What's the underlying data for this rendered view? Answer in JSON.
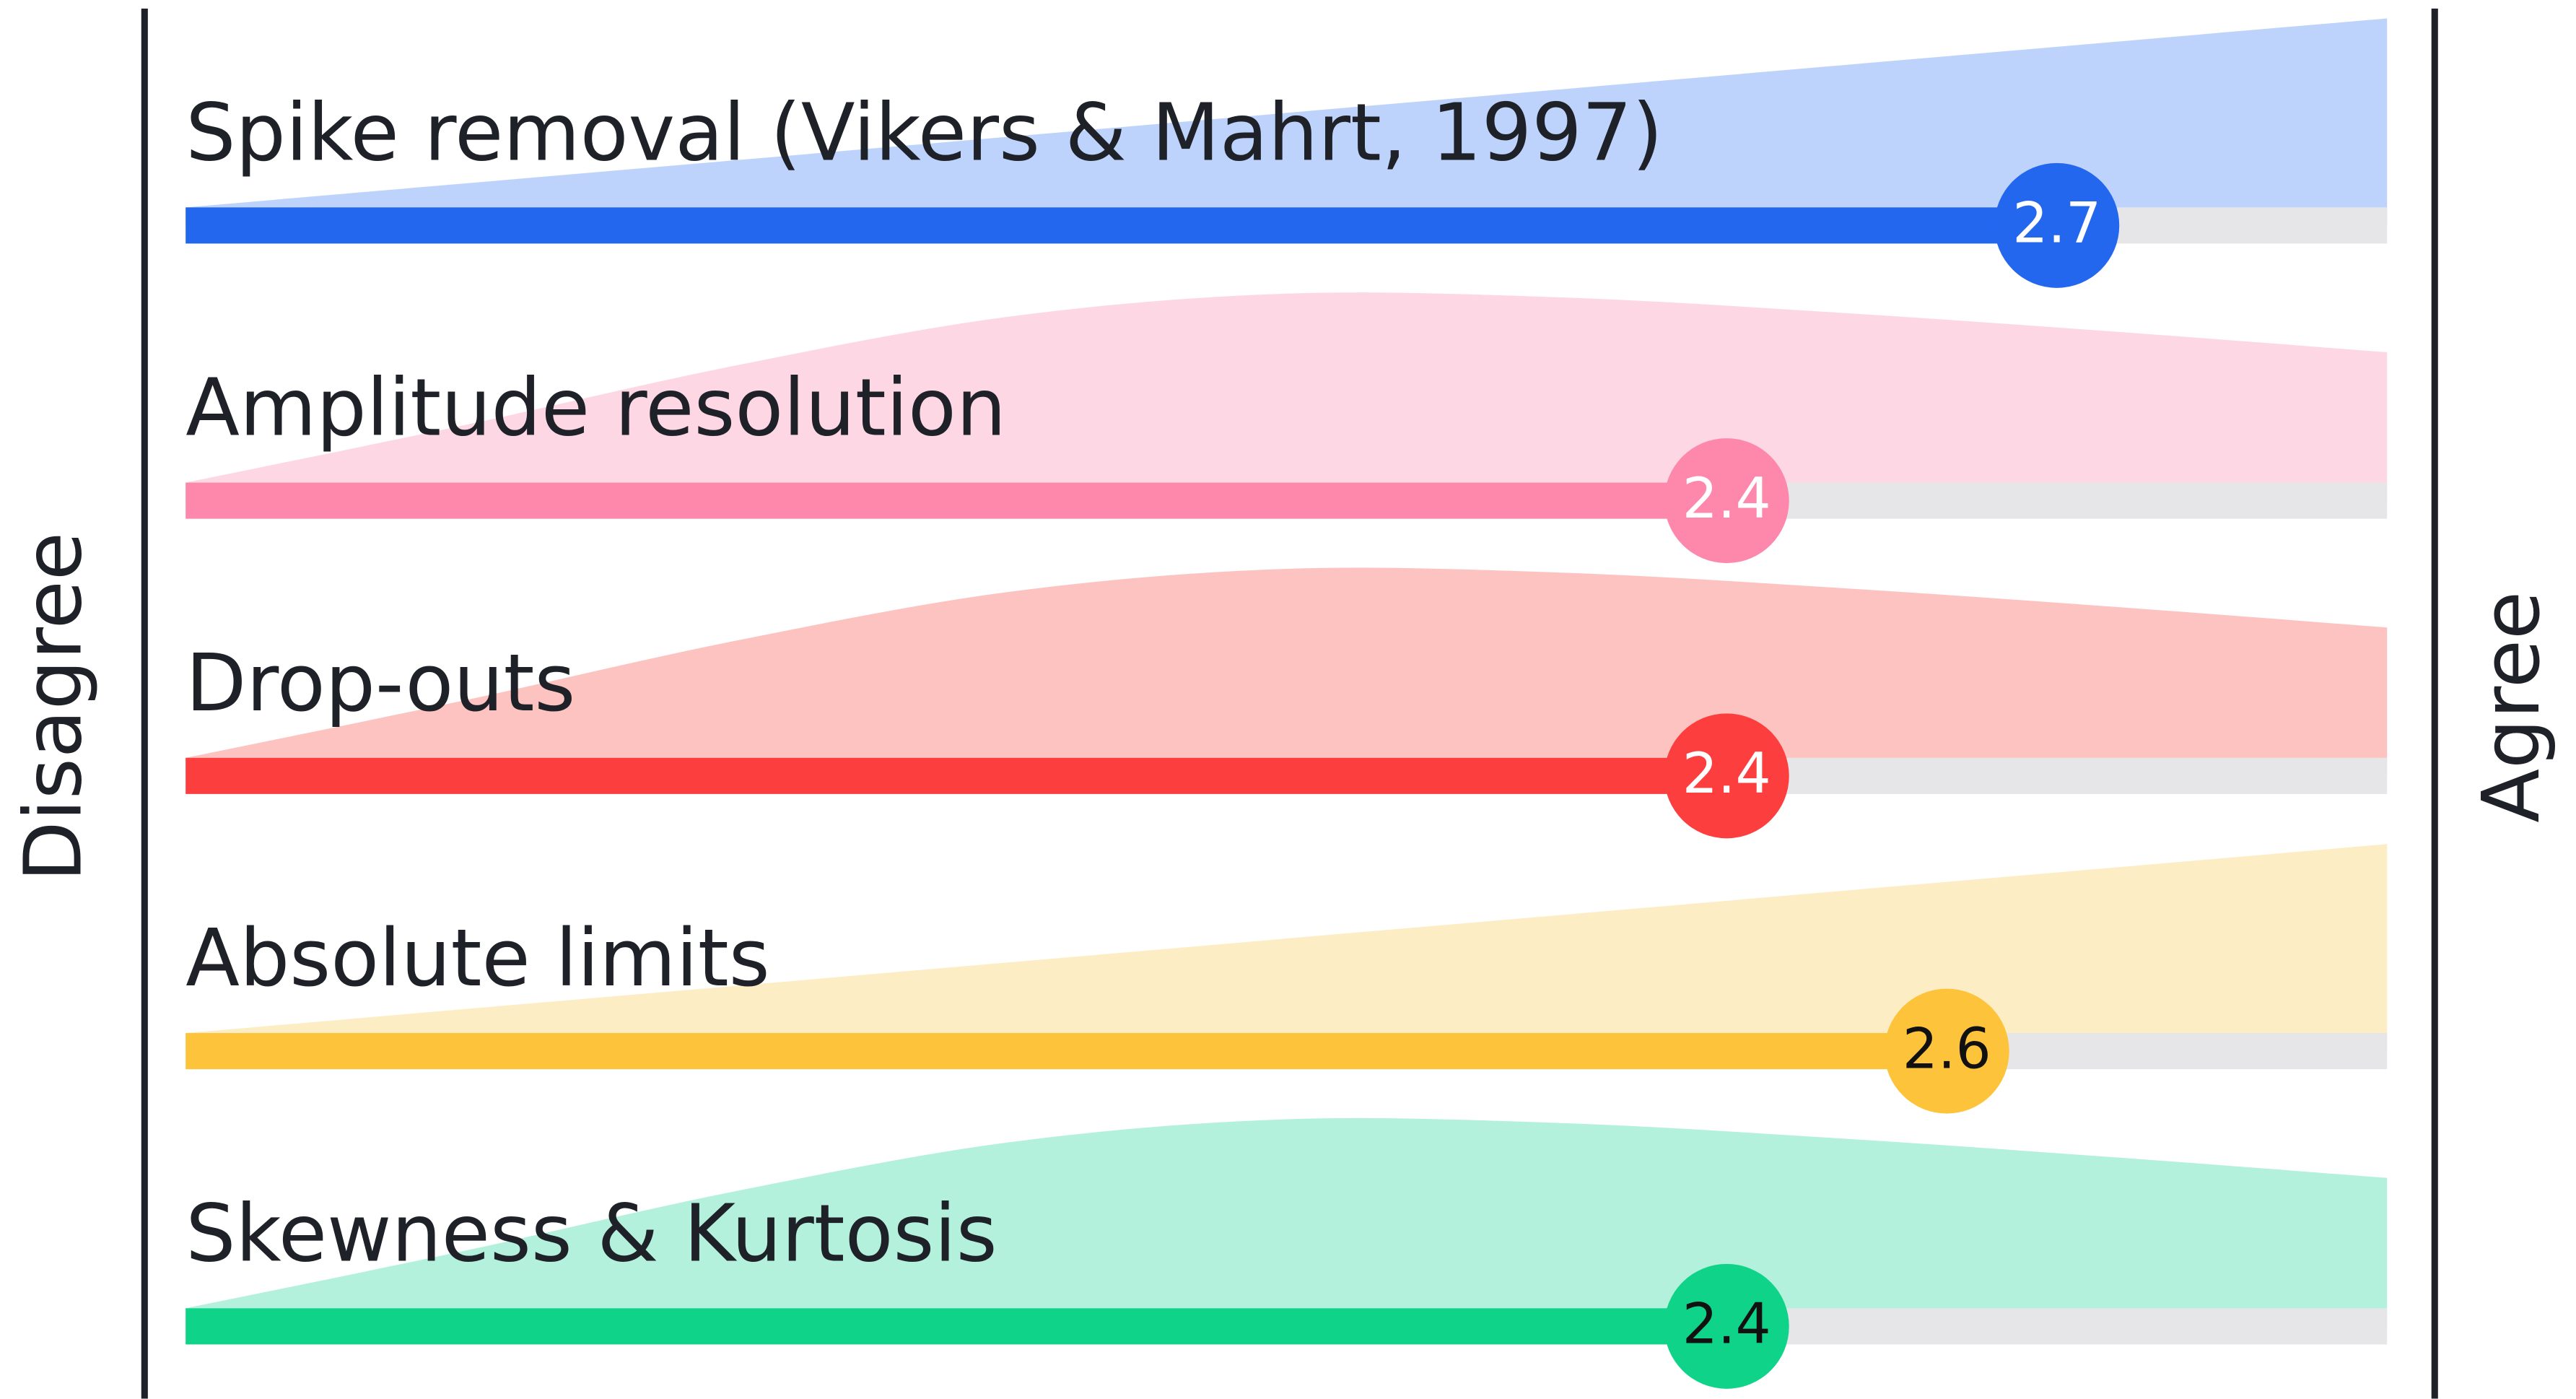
{
  "chart_data": {
    "type": "bar",
    "orientation": "horizontal",
    "left_label": "Disagree",
    "right_label": "Agree",
    "categories": [
      "Spike removal (Vikers & Mahrt, 1997)",
      "Amplitude resolution",
      "Drop-outs",
      "Absolute limits",
      "Skewness & Kurtosis"
    ],
    "values": [
      2.7,
      2.4,
      2.4,
      2.6,
      2.4
    ],
    "colors": [
      "#2367ef",
      "#fd88ab",
      "#fd3e3e",
      "#fdc43b",
      "#10d38a"
    ],
    "area_colors": [
      "#bdd3fb",
      "#fdd7e3",
      "#fdc3c1",
      "#fdedc5",
      "#b4f1dc"
    ],
    "label_colors": [
      "#ffffff",
      "#ffffff",
      "#ffffff",
      "#111111",
      "#111111"
    ],
    "xlim": [
      1,
      3
    ],
    "density_x": [
      1,
      1.25,
      1.5,
      1.75,
      2,
      2.25,
      2.5,
      2.75,
      3
    ],
    "densities": [
      [
        0,
        0.125,
        0.25,
        0.375,
        0.5,
        0.625,
        0.75,
        0.875,
        1
      ],
      [
        0,
        0.3,
        0.62,
        0.88,
        1,
        0.98,
        0.9,
        0.8,
        0.69
      ],
      [
        0,
        0.3,
        0.62,
        0.88,
        1,
        0.98,
        0.9,
        0.8,
        0.69
      ],
      [
        0,
        0.125,
        0.25,
        0.375,
        0.5,
        0.625,
        0.75,
        0.875,
        1
      ],
      [
        0,
        0.3,
        0.62,
        0.88,
        1,
        0.98,
        0.9,
        0.8,
        0.69
      ]
    ]
  }
}
